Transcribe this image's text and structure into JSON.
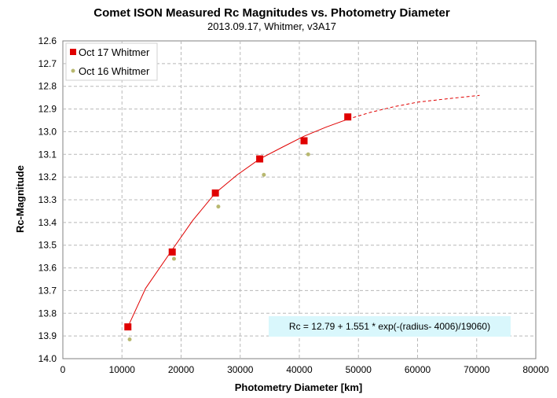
{
  "chart_data": {
    "type": "scatter",
    "title": "Comet ISON Measured Rc Magnitudes vs. Photometry Diameter",
    "subtitle": "2013.09.17,  Whitmer, v3A17",
    "xlabel": "Photometry Diameter  [km]",
    "ylabel": "Rc-Magnitude",
    "xlim": [
      0,
      80000
    ],
    "ylim": [
      12.6,
      14.0
    ],
    "y_inverted": true,
    "x_ticks": [
      0,
      10000,
      20000,
      30000,
      40000,
      50000,
      60000,
      70000,
      80000
    ],
    "y_ticks": [
      "12.6",
      "12.7",
      "12.8",
      "12.9",
      "13.0",
      "13.1",
      "13.2",
      "13.3",
      "13.4",
      "13.5",
      "13.6",
      "13.7",
      "13.8",
      "13.9",
      "14.0"
    ],
    "grid": true,
    "legend_position": "top-left",
    "series": [
      {
        "name": "Oct 17 Whitmer",
        "marker": "square",
        "color": "#e00000",
        "x": [
          11000,
          18500,
          25800,
          33300,
          40800,
          48200
        ],
        "y": [
          13.86,
          13.53,
          13.27,
          13.12,
          13.04,
          12.935
        ]
      },
      {
        "name": "Oct 16 Whitmer",
        "marker": "circle",
        "color": "#b8b870",
        "x": [
          11300,
          18800,
          26300,
          34000,
          41500
        ],
        "y": [
          13.915,
          13.56,
          13.33,
          13.19,
          13.1
        ]
      }
    ],
    "fit": {
      "color": "#e00000",
      "solid_x": [
        11000,
        14000,
        18500,
        22000,
        25800,
        29500,
        33300,
        37000,
        40800,
        44500,
        48200
      ],
      "solid_y": [
        13.86,
        13.69,
        13.52,
        13.39,
        13.27,
        13.19,
        13.12,
        13.07,
        13.02,
        12.98,
        12.945
      ],
      "dashed_x": [
        48200,
        52000,
        56000,
        60000,
        65000,
        70500
      ],
      "dashed_y": [
        12.945,
        12.915,
        12.89,
        12.87,
        12.855,
        12.84
      ]
    },
    "annotation": "Rc = 12.79 + 1.551 * exp(-(radius- 4006)/19060)",
    "annotation_bg": "#d9f7fc"
  }
}
